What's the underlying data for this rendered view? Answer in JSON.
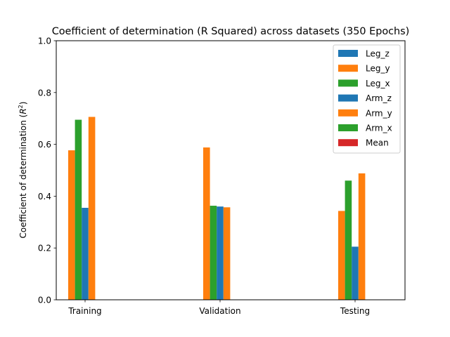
{
  "chart_data": {
    "type": "bar",
    "title": "Coefficient of determination (R Squared) across datasets (350 Epochs)",
    "xlabel": "",
    "ylabel_prefix": "Coefficient of determination (",
    "ylabel_math": "R",
    "ylabel_sup": "2",
    "ylabel_suffix": ")",
    "ylim": [
      0,
      1.0
    ],
    "yticks": [
      "0.0",
      "0.2",
      "0.4",
      "0.6",
      "0.8",
      "1.0"
    ],
    "categories": [
      "Training",
      "Validation",
      "Testing"
    ],
    "grid": false,
    "legend_position": "top-right",
    "series": [
      {
        "name": "Leg_z",
        "color": "#1f77b4",
        "values": [
          0,
          0,
          0
        ]
      },
      {
        "name": "Leg_y",
        "color": "#ff7f0e",
        "values": [
          0.577,
          0.588,
          0.343
        ]
      },
      {
        "name": "Leg_x",
        "color": "#2ca02c",
        "values": [
          0.695,
          0.363,
          0.46
        ]
      },
      {
        "name": "Arm_z",
        "color": "#1f77b4",
        "values": [
          0.355,
          0.36,
          0.205
        ]
      },
      {
        "name": "Arm_y",
        "color": "#ff7f0e",
        "values": [
          0.706,
          0.357,
          0.488
        ]
      },
      {
        "name": "Arm_x",
        "color": "#2ca02c",
        "values": [
          0,
          0,
          0
        ]
      },
      {
        "name": "Mean",
        "color": "#d62728",
        "values": [
          0,
          0,
          0
        ]
      }
    ]
  }
}
